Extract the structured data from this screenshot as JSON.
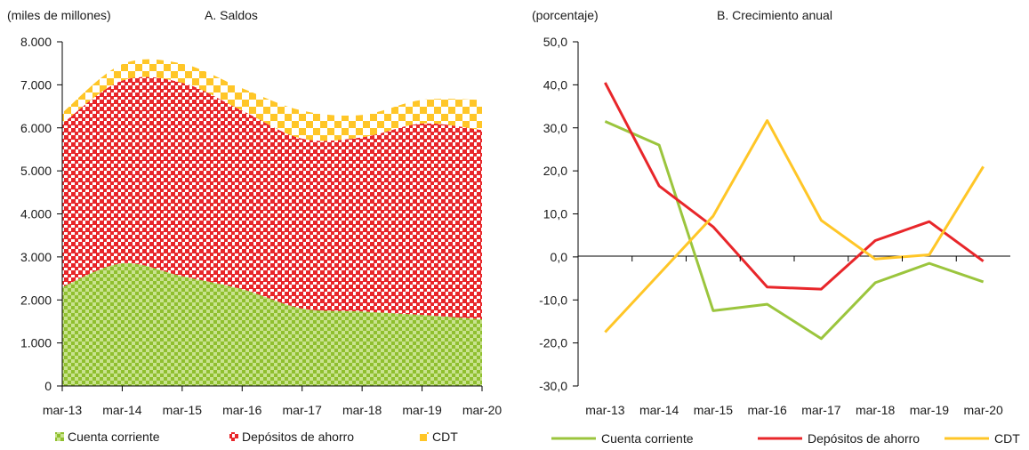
{
  "chart_data": [
    {
      "type": "area",
      "stacked": true,
      "title": "A. Saldos",
      "unit_label": "(miles de millones)",
      "categories": [
        "mar-13",
        "mar-14",
        "mar-15",
        "mar-16",
        "mar-17",
        "mar-18",
        "mar-19",
        "mar-20"
      ],
      "y_ticks": [
        "0",
        "1.000",
        "2.000",
        "3.000",
        "4.000",
        "5.000",
        "6.000",
        "7.000",
        "8.000"
      ],
      "ylim": [
        0,
        8000
      ],
      "grid": false,
      "legend_position": "bottom",
      "series": [
        {
          "name": "Cuenta corriente",
          "color": "#9bc53d",
          "values": [
            2300,
            2850,
            2550,
            2250,
            1800,
            1730,
            1650,
            1550
          ]
        },
        {
          "name": "Depósitos de ahorro",
          "color": "#e8262a",
          "values": [
            3800,
            4250,
            4500,
            4150,
            3950,
            4050,
            4450,
            4400
          ]
        },
        {
          "name": "CDT",
          "color": "#ffc627",
          "values": [
            250,
            380,
            440,
            520,
            650,
            520,
            550,
            700
          ]
        }
      ]
    },
    {
      "type": "line",
      "title": "B. Crecimiento anual",
      "unit_label": "(porcentaje)",
      "categories": [
        "mar-13",
        "mar-14",
        "mar-15",
        "mar-16",
        "mar-17",
        "mar-18",
        "mar-19",
        "mar-20"
      ],
      "y_ticks": [
        "-30,0",
        "-20,0",
        "-10,0",
        "0,0",
        "10,0",
        "20,0",
        "30,0",
        "40,0",
        "50,0"
      ],
      "ylim": [
        -30,
        50
      ],
      "grid": false,
      "legend_position": "bottom",
      "series": [
        {
          "name": "Cuenta corriente",
          "color": "#9bc53d",
          "values": [
            31.5,
            26.0,
            -12.5,
            -11.0,
            -19.0,
            -6.0,
            -1.5,
            -5.8
          ]
        },
        {
          "name": "Depósitos de ahorro",
          "color": "#e8262a",
          "values": [
            40.5,
            16.5,
            7.0,
            -7.0,
            -7.5,
            3.8,
            8.2,
            -1.0
          ]
        },
        {
          "name": "CDT",
          "color": "#ffc627",
          "values": [
            -17.5,
            -4.0,
            9.5,
            31.7,
            8.5,
            -0.5,
            0.5,
            21.0
          ]
        }
      ]
    }
  ]
}
